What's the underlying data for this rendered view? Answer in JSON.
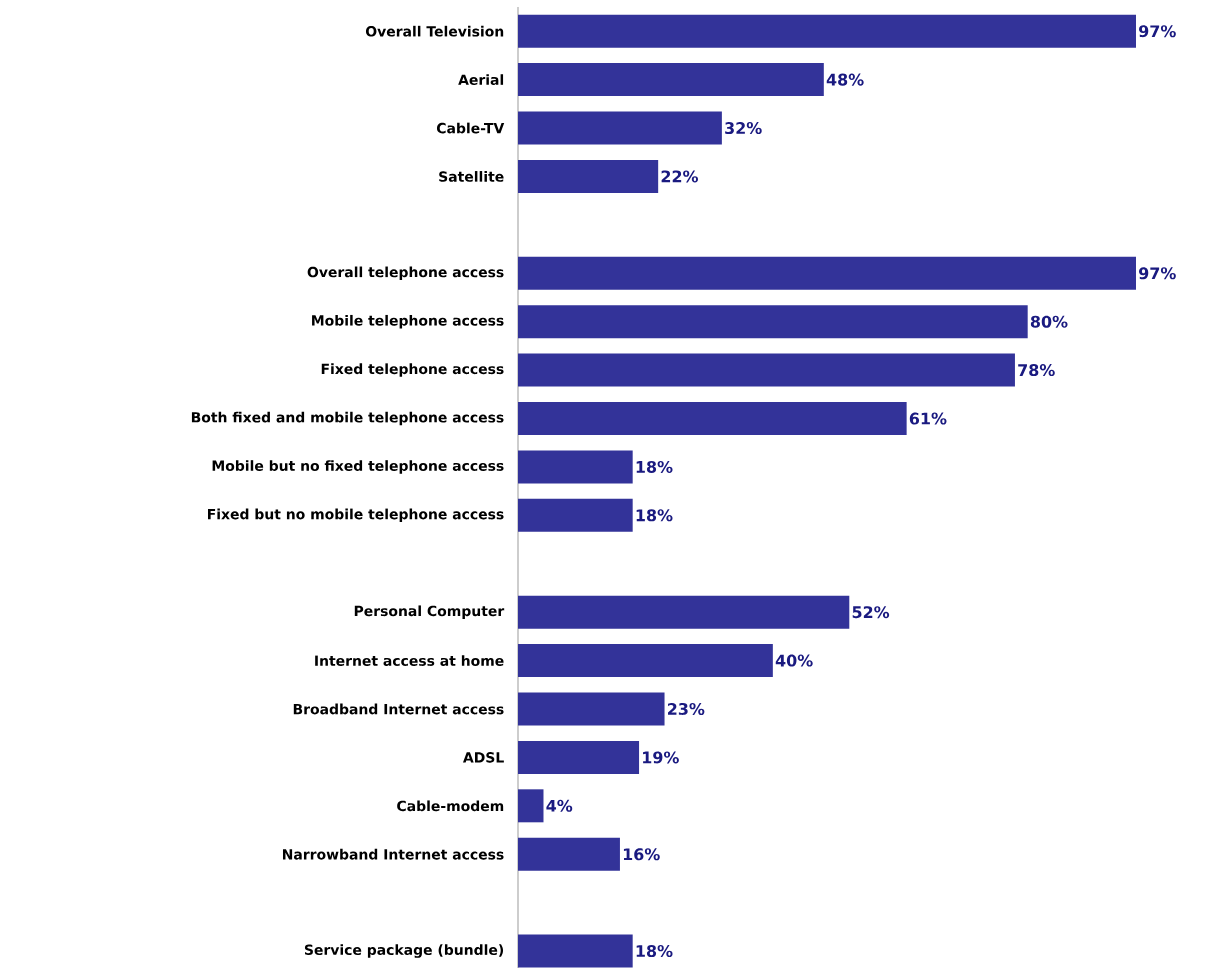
{
  "chart_data": {
    "type": "bar",
    "orientation": "horizontal",
    "color": "#333399",
    "categories": [
      "Overall Television",
      "Aerial",
      "Cable-TV",
      "Satellite",
      null,
      "Overall telephone access",
      "Mobile telephone access",
      "Fixed telephone access",
      "Both fixed and mobile telephone access",
      "Mobile but no fixed telephone access",
      "Fixed but no mobile telephone access",
      null,
      "Personal Computer",
      "Internet access at home",
      "Broadband Internet access",
      "ADSL",
      "Cable-modem",
      "Narrowband Internet access",
      null,
      "Service package (bundle)"
    ],
    "values": [
      97,
      48,
      32,
      22,
      null,
      97,
      80,
      78,
      61,
      18,
      18,
      null,
      52,
      40,
      23,
      19,
      4,
      16,
      null,
      18
    ],
    "value_labels": [
      "97%",
      "48%",
      "32%",
      "22%",
      null,
      "97%",
      "80%",
      "78%",
      "61%",
      "18%",
      "18%",
      null,
      "52%",
      "40%",
      "23%",
      "19%",
      "4%",
      "16%",
      null,
      "18%"
    ]
  }
}
